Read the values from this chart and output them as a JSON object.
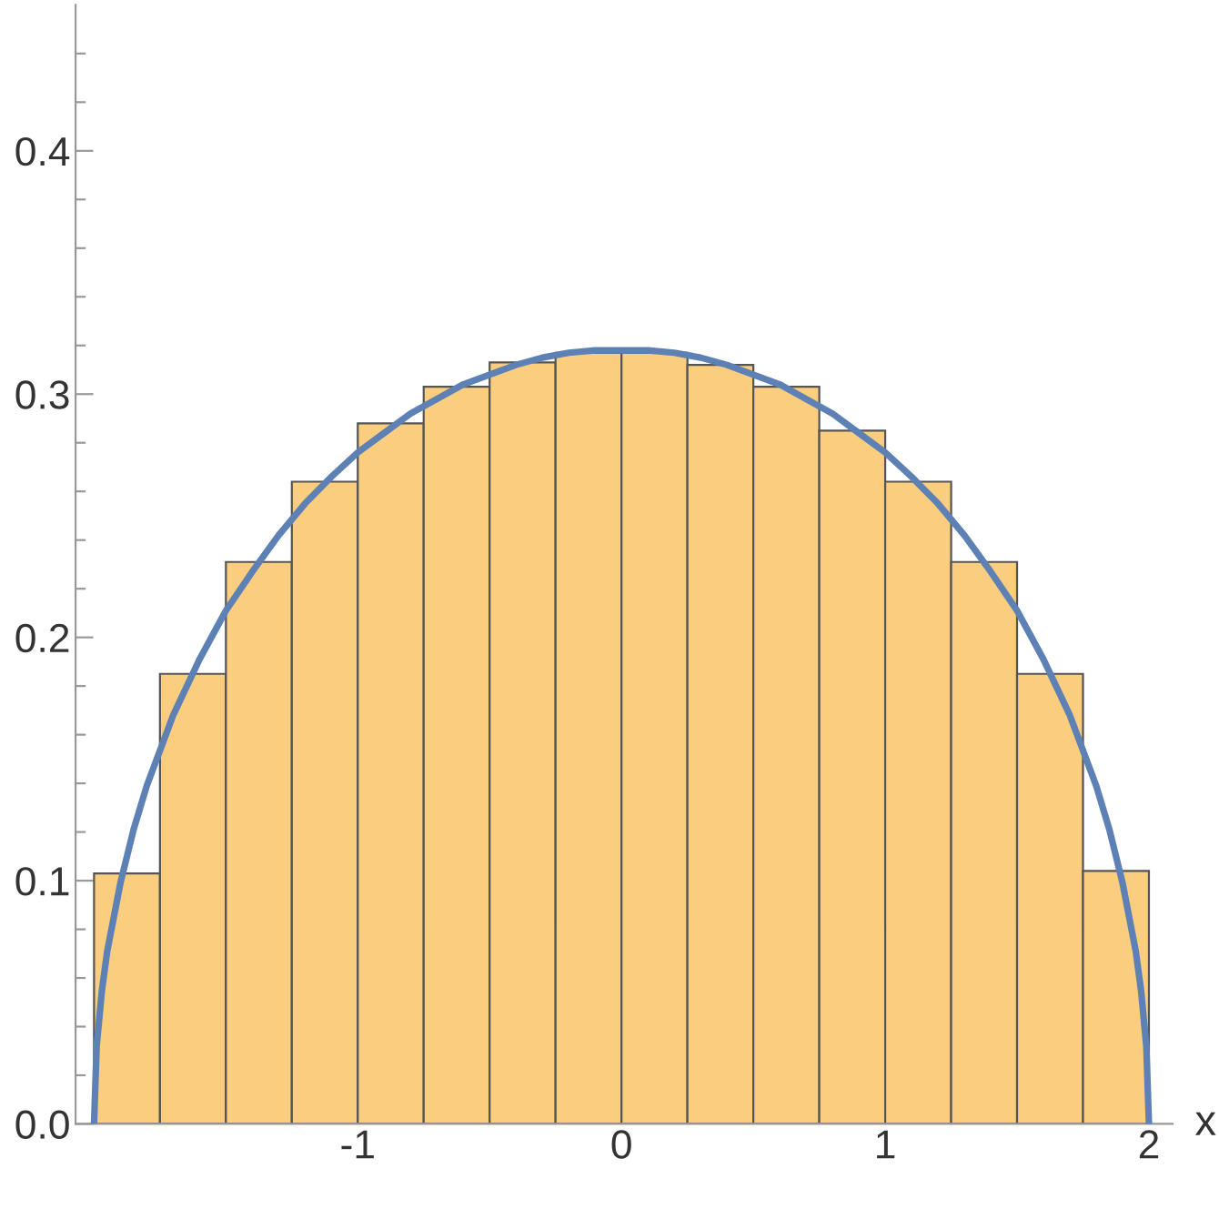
{
  "chart_data": {
    "type": "histogram",
    "xlabel": "x",
    "bins": [
      -2,
      -1.75,
      -1.5,
      -1.25,
      -1,
      -0.75,
      -0.5,
      -0.25,
      0,
      0.25,
      0.5,
      0.75,
      1,
      1.25,
      1.5,
      1.75,
      2
    ],
    "values": [
      0.103,
      0.185,
      0.231,
      0.264,
      0.288,
      0.303,
      0.313,
      0.317,
      0.317,
      0.312,
      0.303,
      0.285,
      0.264,
      0.231,
      0.185,
      0.104
    ],
    "color": "#fbcd7f",
    "series": [
      {
        "type": "line",
        "color": "#5e81b5",
        "x": [
          -2,
          -1.99,
          -1.97,
          -1.95,
          -1.9,
          -1.85,
          -1.8,
          -1.7,
          -1.6,
          -1.5,
          -1.4,
          -1.3,
          -1.2,
          -1.1,
          -1,
          -0.9,
          -0.8,
          -0.7,
          -0.6,
          -0.5,
          -0.4,
          -0.3,
          -0.2,
          -0.1,
          0,
          0.1,
          0.2,
          0.3,
          0.4,
          0.5,
          0.6,
          0.7,
          0.8,
          0.9,
          1,
          1.1,
          1.2,
          1.3,
          1.4,
          1.5,
          1.6,
          1.7,
          1.8,
          1.85,
          1.9,
          1.95,
          1.97,
          1.99,
          2
        ],
        "values": [
          0,
          0.032,
          0.055,
          0.071,
          0.099,
          0.121,
          0.139,
          0.168,
          0.191,
          0.211,
          0.227,
          0.242,
          0.255,
          0.266,
          0.276,
          0.284,
          0.292,
          0.298,
          0.304,
          0.308,
          0.312,
          0.315,
          0.317,
          0.318,
          0.318,
          0.318,
          0.317,
          0.315,
          0.312,
          0.308,
          0.304,
          0.298,
          0.292,
          0.284,
          0.276,
          0.266,
          0.255,
          0.242,
          0.227,
          0.211,
          0.191,
          0.168,
          0.139,
          0.121,
          0.099,
          0.071,
          0.055,
          0.032,
          0
        ]
      }
    ],
    "xlim": [
      -2.07,
      2.09
    ],
    "ylim": [
      0,
      0.46
    ],
    "xticks": [
      {
        "value": -1.8,
        "label": null
      },
      {
        "value": -1.6,
        "label": null
      },
      {
        "value": -1.4,
        "label": null
      },
      {
        "value": -1.2,
        "label": null
      },
      {
        "value": -1,
        "label": "-1"
      },
      {
        "value": -0.8,
        "label": null
      },
      {
        "value": -0.6,
        "label": null
      },
      {
        "value": -0.4,
        "label": null
      },
      {
        "value": -0.2,
        "label": null
      },
      0,
      {
        "value": 0.2,
        "label": null
      },
      {
        "value": 0.4,
        "label": null
      },
      {
        "value": 0.6,
        "label": null
      },
      {
        "value": 0.8,
        "label": null
      },
      1,
      {
        "value": 1.2,
        "label": null
      },
      {
        "value": 1.4,
        "label": null
      },
      {
        "value": 1.6,
        "label": null
      },
      {
        "value": 1.8,
        "label": null
      },
      2
    ],
    "yticks": [
      {
        "value": 0,
        "label": "0.0"
      },
      {
        "value": 0.02,
        "label": null
      },
      {
        "value": 0.04,
        "label": null
      },
      {
        "value": 0.06,
        "label": null
      },
      {
        "value": 0.08,
        "label": null
      },
      0.1,
      {
        "value": 0.12,
        "label": null
      },
      {
        "value": 0.14,
        "label": null
      },
      {
        "value": 0.16,
        "label": null
      },
      {
        "value": 0.18,
        "label": null
      },
      0.2,
      {
        "value": 0.22,
        "label": null
      },
      {
        "value": 0.24,
        "label": null
      },
      {
        "value": 0.26,
        "label": null
      },
      {
        "value": 0.28,
        "label": null
      },
      0.3,
      {
        "value": 0.32,
        "label": null
      },
      {
        "value": 0.34,
        "label": null
      },
      {
        "value": 0.36,
        "label": null
      },
      {
        "value": 0.38,
        "label": null
      },
      0.4,
      {
        "value": 0.42,
        "label": null
      },
      {
        "value": 0.44,
        "label": null
      }
    ],
    "grid": false,
    "legend": false
  }
}
